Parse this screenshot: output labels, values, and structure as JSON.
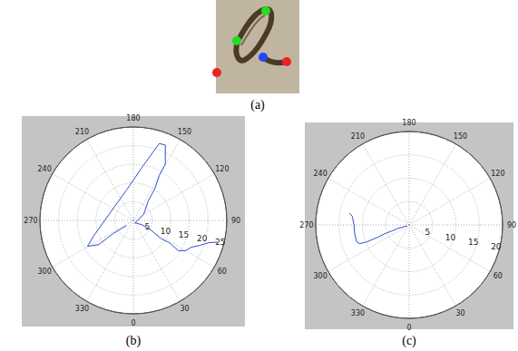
{
  "chart_data": [
    {
      "type": "polar",
      "title": "(b)",
      "color": "#3050d0",
      "grid": true,
      "xlim": [
        0,
        360
      ],
      "xticks": [
        0,
        30,
        60,
        90,
        120,
        150,
        180,
        210,
        240,
        270,
        300,
        330
      ],
      "ylim": [
        0,
        25
      ],
      "yticks": [
        5,
        10,
        15,
        20,
        25
      ],
      "x": [
        75.5,
        73.4,
        69.4,
        65.2,
        59.7,
        56.1,
        58.2,
        56.7,
        61.2,
        63.4,
        33.7,
        120.3,
        142.3,
        145.9,
        150.0,
        150.4,
        157.0,
        161.4,
        169.4,
        192.9,
        256.0,
        291.4,
        299.5,
        305.0,
        303.1,
        306.9
      ],
      "values": [
        23.2,
        21.0,
        19.0,
        17.1,
        16.1,
        14.5,
        11.4,
        8.9,
        5.3,
        2.6,
        0.8,
        3.2,
        6.4,
        10.3,
        13.9,
        17.3,
        21.9,
        21.7,
        15.1,
        8.3,
        6.7,
        11.4,
        14.1,
        11.3,
        6.4,
        2.3
      ]
    },
    {
      "type": "polar",
      "title": "(c)",
      "color": "#3050d0",
      "grid": true,
      "xlim": [
        0,
        360
      ],
      "xticks": [
        0,
        30,
        60,
        90,
        120,
        150,
        180,
        210,
        240,
        270,
        300,
        330
      ],
      "ylim": [
        0,
        20
      ],
      "yticks": [
        5,
        10,
        15,
        20
      ],
      "x": [
        296.6,
        287.1,
        289.3,
        289.7,
        291.3,
        291.6,
        291.8,
        290.8,
        287.9,
        278.9,
        270.0,
        261.5,
        258.7
      ],
      "values": [
        0.4,
        2.5,
        3.9,
        5.4,
        7.0,
        8.4,
        9.8,
        11.3,
        11.8,
        11.8,
        11.8,
        12.3,
        13.0
      ]
    }
  ],
  "panel_a": {
    "caption": "(a)"
  }
}
